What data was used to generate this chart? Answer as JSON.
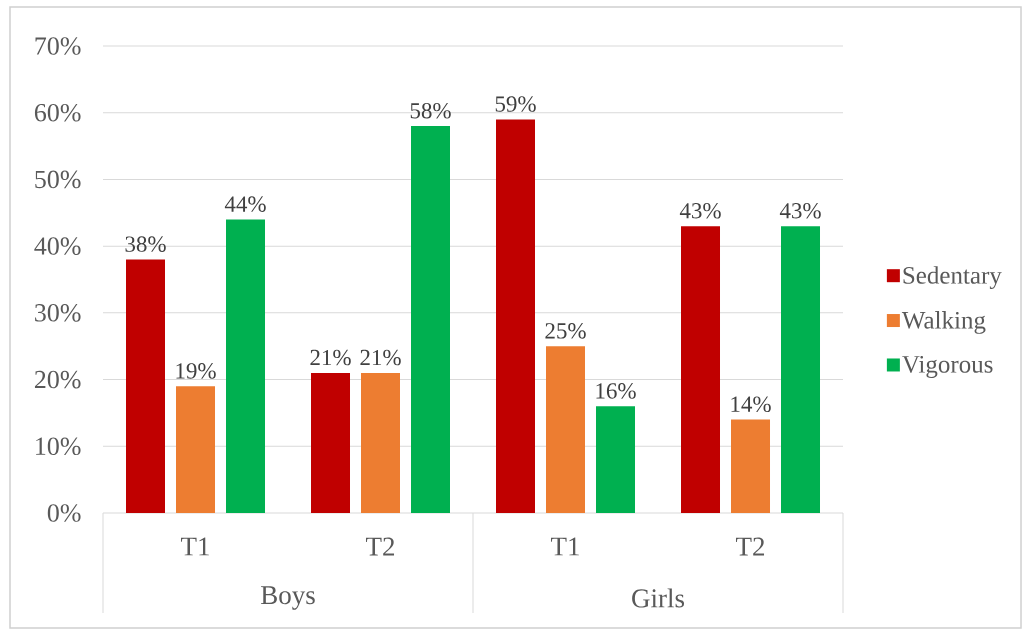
{
  "chart_data": {
    "type": "bar",
    "categories": [
      "T1",
      "T2",
      "T1",
      "T2"
    ],
    "annotations": [
      "Boys",
      "Girls"
    ],
    "series": [
      {
        "name": "Sedentary",
        "color": "#c00000",
        "values": [
          38,
          21,
          59,
          43
        ],
        "value_labels": [
          "38%",
          "21%",
          "59%",
          "43%"
        ]
      },
      {
        "name": "Walking",
        "color": "#ed7d31",
        "values": [
          19,
          21,
          25,
          14
        ],
        "value_labels": [
          "19%",
          "21%",
          "25%",
          "14%"
        ]
      },
      {
        "name": "Vigorous",
        "color": "#00b050",
        "values": [
          44,
          58,
          16,
          43
        ],
        "value_labels": [
          "44%",
          "58%",
          "16%",
          "43%"
        ]
      }
    ],
    "ylim": [
      0,
      70
    ],
    "yticks": [
      {
        "value": 0,
        "label": "0%"
      },
      {
        "value": 10,
        "label": "10%"
      },
      {
        "value": 20,
        "label": "20%"
      },
      {
        "value": 30,
        "label": "30%"
      },
      {
        "value": 40,
        "label": "40%"
      },
      {
        "value": 50,
        "label": "50%"
      },
      {
        "value": 60,
        "label": "60%"
      },
      {
        "value": 70,
        "label": "70%"
      }
    ],
    "grid": "y",
    "legend": "right"
  }
}
